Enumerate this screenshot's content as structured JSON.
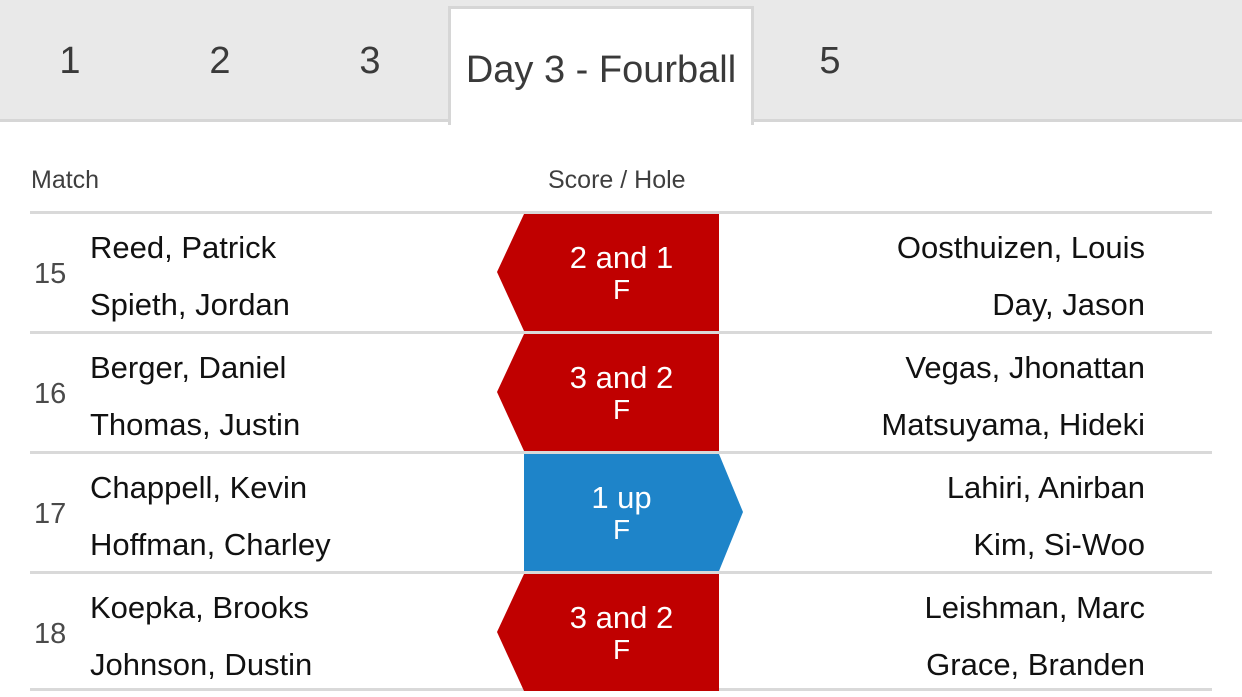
{
  "tabs": [
    {
      "label": "1"
    },
    {
      "label": "2"
    },
    {
      "label": "3"
    },
    {
      "label": "Day 3 - Fourball"
    },
    {
      "label": "5"
    }
  ],
  "headers": {
    "match": "Match",
    "score": "Score / Hole"
  },
  "colors": {
    "left_win": "#c00000",
    "right_win": "#1e84c9"
  },
  "matches": [
    {
      "number": "15",
      "left_players": [
        "Reed, Patrick",
        "Spieth, Jordan"
      ],
      "right_players": [
        "Oosthuizen, Louis",
        "Day, Jason"
      ],
      "score": "2 and 1",
      "hole": "F",
      "winner_side": "left"
    },
    {
      "number": "16",
      "left_players": [
        "Berger, Daniel",
        "Thomas, Justin"
      ],
      "right_players": [
        "Vegas, Jhonattan",
        "Matsuyama, Hideki"
      ],
      "score": "3 and 2",
      "hole": "F",
      "winner_side": "left"
    },
    {
      "number": "17",
      "left_players": [
        "Chappell, Kevin",
        "Hoffman, Charley"
      ],
      "right_players": [
        "Lahiri, Anirban",
        "Kim, Si-Woo"
      ],
      "score": "1 up",
      "hole": "F",
      "winner_side": "right"
    },
    {
      "number": "18",
      "left_players": [
        "Koepka, Brooks",
        "Johnson, Dustin"
      ],
      "right_players": [
        "Leishman, Marc",
        "Grace, Branden"
      ],
      "score": "3 and 2",
      "hole": "F",
      "winner_side": "left"
    }
  ]
}
